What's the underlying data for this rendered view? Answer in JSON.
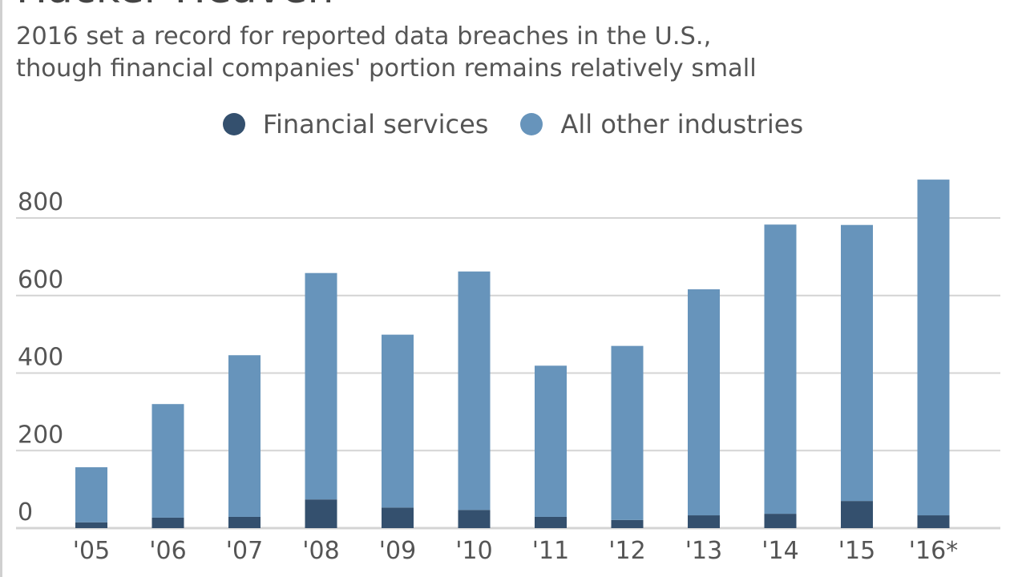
{
  "chart_data": {
    "type": "bar",
    "stacked": true,
    "title": "Hacker Heaven",
    "subtitle": "2016 set a record for reported data breaches in the U.S.,\nthough financial companies' portion remains relatively small",
    "xlabel": "",
    "ylabel": "",
    "categories": [
      "'05",
      "'06",
      "'07",
      "'08",
      "'09",
      "'10",
      "'11",
      "'12",
      "'13",
      "'14",
      "'15",
      "'16*"
    ],
    "series": [
      {
        "name": "Financial services",
        "color": "#34506e",
        "values": [
          15,
          27,
          29,
          74,
          53,
          47,
          29,
          21,
          33,
          37,
          70,
          33
        ]
      },
      {
        "name": "All other industries",
        "color": "#6794bb",
        "values": [
          142,
          293,
          417,
          584,
          446,
          615,
          390,
          449,
          583,
          746,
          712,
          866
        ]
      }
    ],
    "yticks": [
      0,
      200,
      400,
      600,
      800
    ],
    "ylim": [
      0,
      950
    ],
    "grid": true,
    "legend_position": "top-center"
  }
}
